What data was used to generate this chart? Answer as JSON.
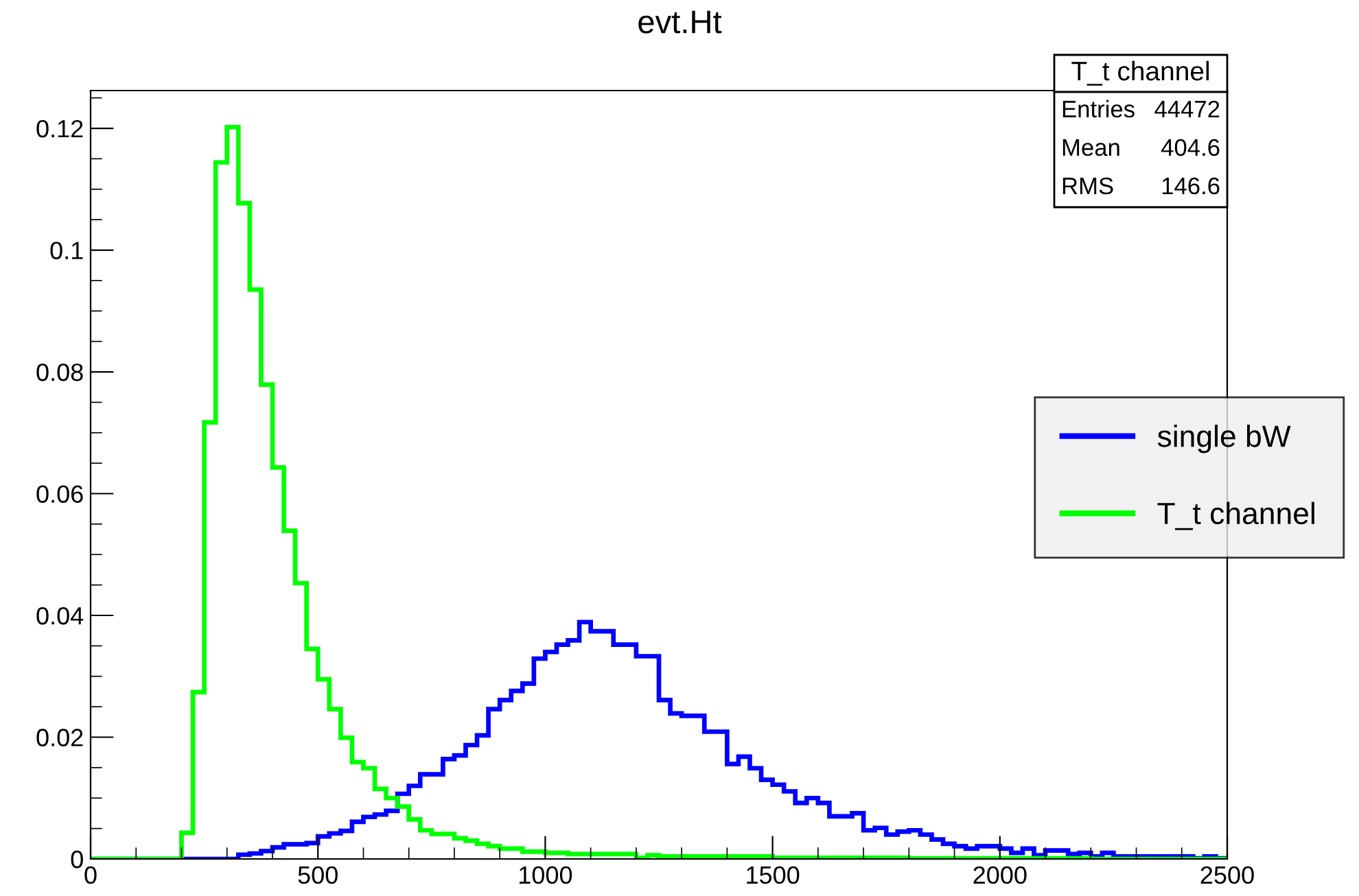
{
  "chart_data": {
    "type": "histogram",
    "title": "evt.Ht",
    "bins": [
      0,
      25,
      50,
      75,
      100,
      125,
      150,
      175,
      200,
      225,
      250,
      275,
      300,
      325,
      350,
      375,
      400,
      425,
      450,
      475,
      500,
      525,
      550,
      575,
      600,
      625,
      650,
      675,
      700,
      725,
      750,
      775,
      800,
      825,
      850,
      875,
      900,
      925,
      950,
      975,
      1000,
      1025,
      1050,
      1075,
      1100,
      1125,
      1150,
      1175,
      1200,
      1225,
      1250,
      1275,
      1300,
      1325,
      1350,
      1375,
      1400,
      1425,
      1450,
      1475,
      1500,
      1525,
      1550,
      1575,
      1600,
      1625,
      1650,
      1675,
      1700,
      1725,
      1750,
      1775,
      1800,
      1825,
      1850,
      1875,
      1900,
      1925,
      1950,
      1975,
      2000,
      2025,
      2050,
      2075,
      2100,
      2125,
      2150,
      2175,
      2200,
      2225,
      2250,
      2275,
      2300,
      2325,
      2350,
      2375,
      2400,
      2425,
      2450,
      2475,
      2500
    ],
    "series": [
      {
        "name": "single bW",
        "color": "#0000ff",
        "values": [
          0,
          0,
          0,
          0,
          0,
          0,
          0,
          0,
          0,
          0,
          0,
          0,
          0,
          0.0007,
          0.0009,
          0.0013,
          0.0019,
          0.0024,
          0.0024,
          0.0026,
          0.0037,
          0.0042,
          0.0046,
          0.0061,
          0.0069,
          0.0073,
          0.0079,
          0.0107,
          0.012,
          0.0139,
          0.0139,
          0.0164,
          0.017,
          0.0187,
          0.0203,
          0.0246,
          0.0261,
          0.0276,
          0.0288,
          0.0329,
          0.034,
          0.0352,
          0.0359,
          0.0389,
          0.0374,
          0.0374,
          0.0352,
          0.0352,
          0.0333,
          0.0333,
          0.0261,
          0.0239,
          0.0235,
          0.0235,
          0.0209,
          0.0209,
          0.0156,
          0.0168,
          0.0149,
          0.013,
          0.0122,
          0.0111,
          0.0092,
          0.01,
          0.0092,
          0.007,
          0.007,
          0.0075,
          0.0047,
          0.0051,
          0.004,
          0.0045,
          0.0047,
          0.004,
          0.0032,
          0.0025,
          0.0021,
          0.0017,
          0.0021,
          0.0021,
          0.0017,
          0.001,
          0.0017,
          0.0006,
          0.0014,
          0.0014,
          0.0008,
          0.001,
          0.0004,
          0.001,
          0.0004,
          0.0004,
          0.0004,
          0.0004,
          0.0004,
          0.0004,
          0.0004,
          0.0001,
          0.0004,
          0.0001
        ]
      },
      {
        "name": "T_t channel",
        "color": "#00ff00",
        "values": [
          0,
          0,
          0,
          0,
          0,
          0,
          0,
          0,
          0.0043,
          0.0274,
          0.0717,
          0.1144,
          0.1202,
          0.1077,
          0.0935,
          0.0779,
          0.0643,
          0.0539,
          0.0453,
          0.0345,
          0.0295,
          0.0246,
          0.0199,
          0.0159,
          0.0149,
          0.0115,
          0.01,
          0.0086,
          0.0065,
          0.0047,
          0.0041,
          0.0041,
          0.0034,
          0.003,
          0.0025,
          0.0021,
          0.0017,
          0.0017,
          0.0012,
          0.0012,
          0.001,
          0.001,
          0.0008,
          0.0008,
          0.0008,
          0.0008,
          0.0008,
          0.0008,
          0.0002,
          0.0006,
          0.0004,
          0.0004,
          0.0004,
          0.0004,
          0.0004,
          0.0004,
          0.0004,
          0.0004,
          0.0004,
          0.0004,
          0.0002,
          0.0002,
          0.0002,
          0.0002,
          0.0002,
          0.0002,
          0.0002,
          0.0002,
          0.0002,
          0.0002,
          0.0002,
          0.0002,
          0.0001,
          0.0001,
          0.0001,
          0.0001,
          0.0001,
          0.0001,
          0.0001,
          0.0001,
          0.0001,
          0.0001,
          0.0001,
          0.0001,
          0.0001,
          0.0001,
          0.0001,
          0.0001,
          0,
          0,
          0,
          0,
          0,
          0,
          0,
          0,
          0,
          0,
          0,
          0
        ]
      }
    ],
    "xlim": [
      0,
      2500
    ],
    "xticks": [
      0,
      500,
      1000,
      1500,
      2000,
      2500
    ],
    "ylim": [
      0,
      0.1262
    ],
    "yticks": [
      0,
      0.02,
      0.04,
      0.06,
      0.08,
      0.1,
      0.12
    ],
    "grid": false,
    "legend": "right",
    "annotations": [
      "T_t channel",
      "Entries",
      "44472",
      "Mean",
      "404.6",
      "RMS",
      "146.6"
    ]
  }
}
